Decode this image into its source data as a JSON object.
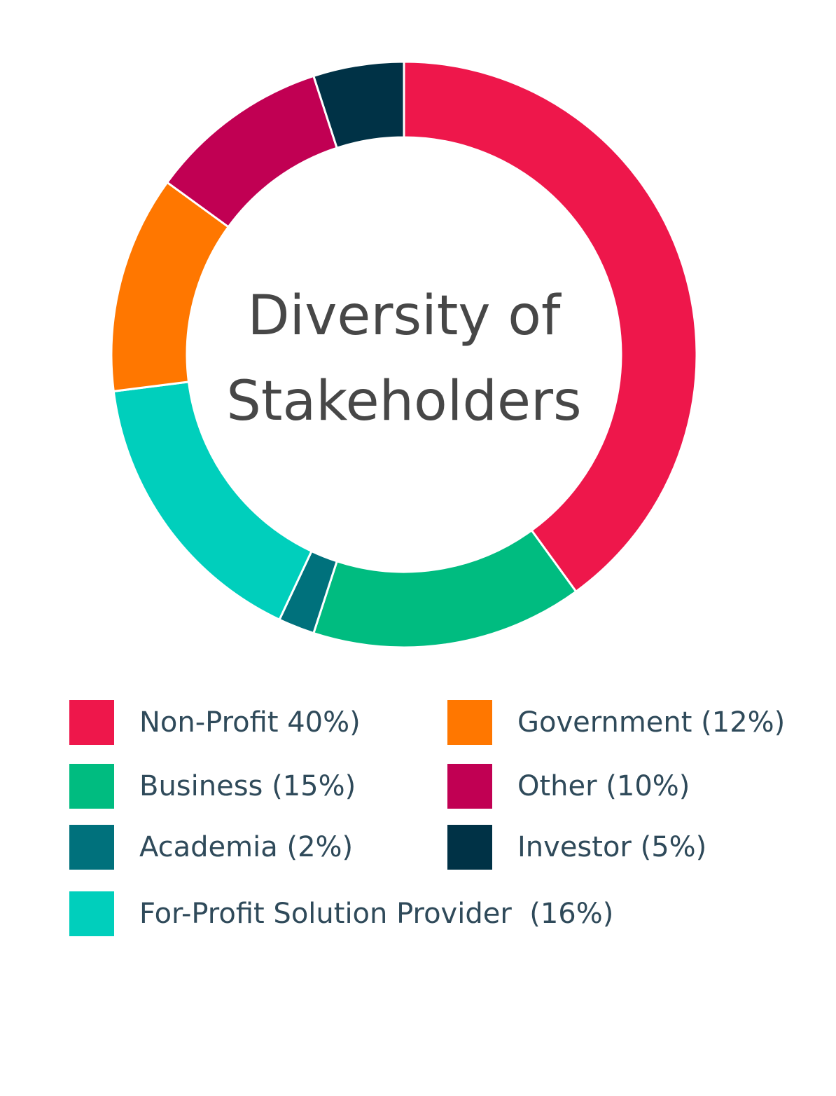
{
  "chart_data": {
    "type": "pie",
    "variant": "donut",
    "title_lines": [
      "Diversity of",
      "Stakeholders"
    ],
    "slices": [
      {
        "label": "Non-Profit",
        "value": 40,
        "color": "#ee174b"
      },
      {
        "label": "Business",
        "value": 15,
        "color": "#00bc80"
      },
      {
        "label": "Academia",
        "value": 2,
        "color": "#00717c"
      },
      {
        "label": "For-Profit Solution Provider",
        "value": 16,
        "color": "#00cfbc"
      },
      {
        "label": "Government",
        "value": 12,
        "color": "#ff7700"
      },
      {
        "label": "Other",
        "value": 10,
        "color": "#c10053"
      },
      {
        "label": "Investor",
        "value": 5,
        "color": "#003246"
      }
    ],
    "legend_placement": "bottom",
    "legend": [
      {
        "text": "Non-Profit 40%)",
        "color": "#ee174b"
      },
      {
        "text": "Government (12%)",
        "color": "#ff7700"
      },
      {
        "text": "Business (15%)",
        "color": "#00bc80"
      },
      {
        "text": "Other (10%)",
        "color": "#c10053"
      },
      {
        "text": "Academia (2%)",
        "color": "#00717c"
      },
      {
        "text": "Investor (5%)",
        "color": "#003246"
      },
      {
        "text": "For-Profit Solution Provider  (16%)",
        "color": "#00cfbc"
      }
    ]
  }
}
